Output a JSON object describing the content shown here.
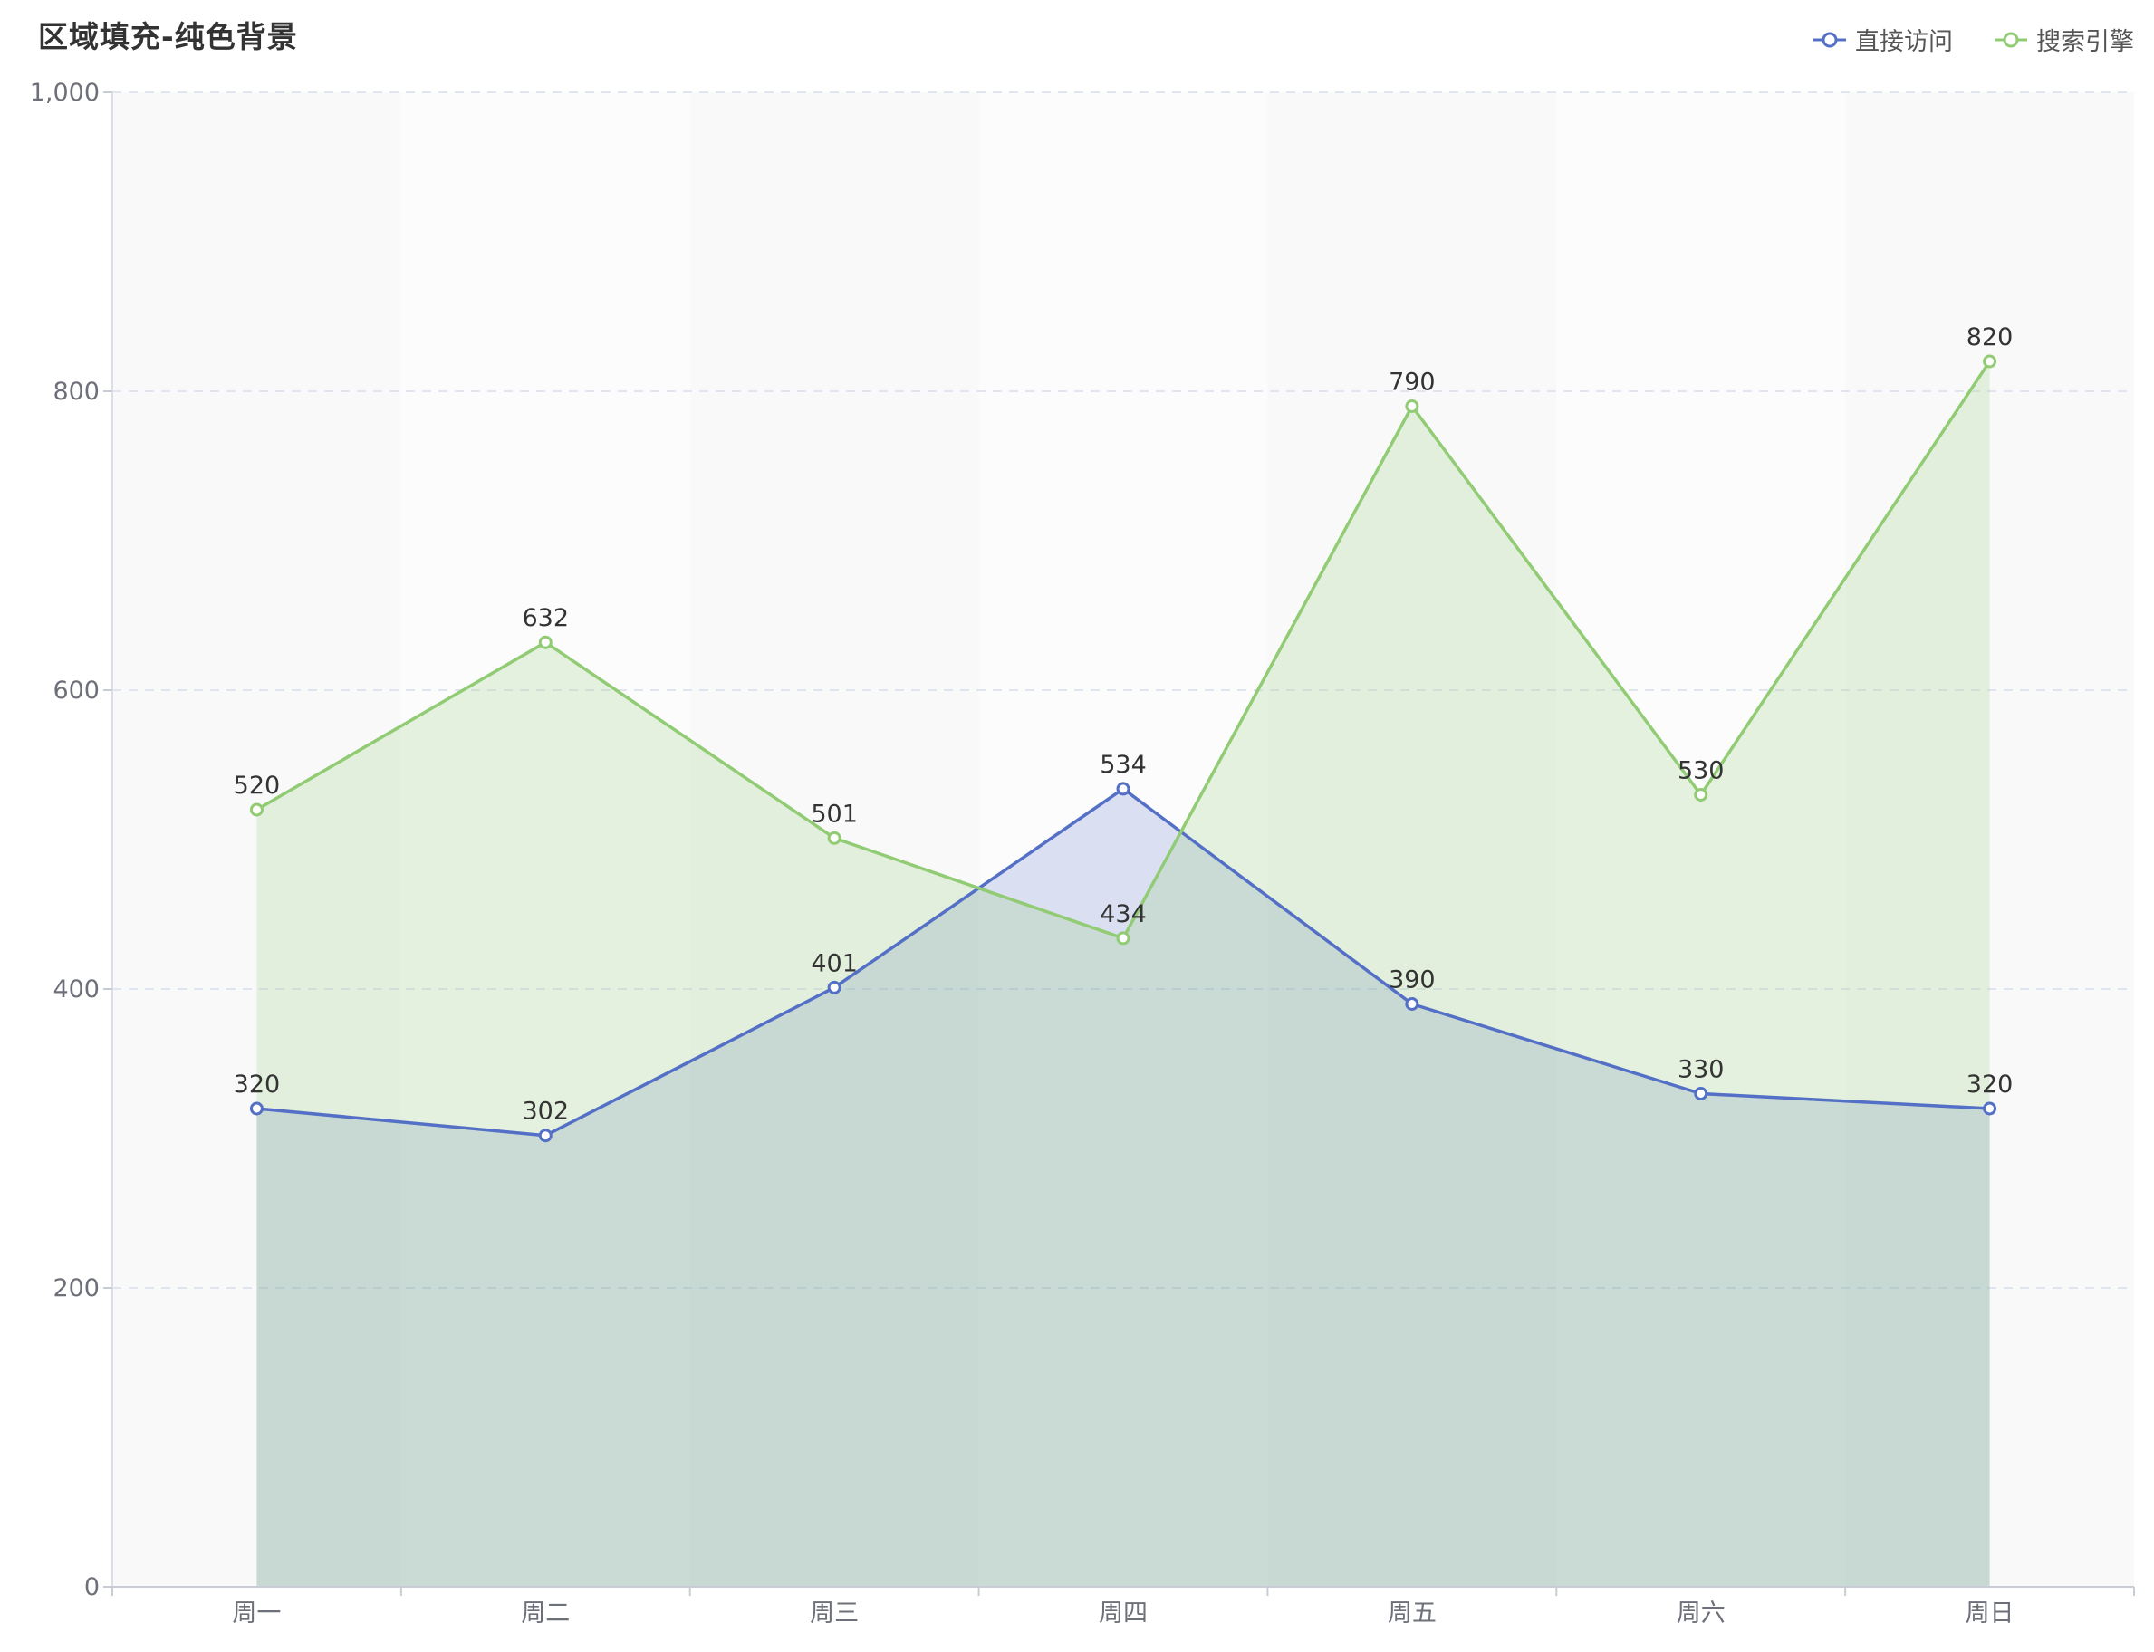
{
  "chart_data": {
    "type": "area",
    "title": "区域填充-纯色背景",
    "categories": [
      "周一",
      "周二",
      "周三",
      "周四",
      "周五",
      "周六",
      "周日"
    ],
    "series": [
      {
        "name": "直接访问",
        "values": [
          320,
          302,
          401,
          534,
          390,
          330,
          320
        ],
        "color": "#5470c6",
        "fill": "#5470c6"
      },
      {
        "name": "搜索引擎",
        "values": [
          520,
          632,
          501,
          434,
          790,
          530,
          820
        ],
        "color": "#91cc75",
        "fill": "#91cc75"
      }
    ],
    "ylim": [
      0,
      1000
    ],
    "yticks": [
      0,
      200,
      400,
      600,
      800,
      1000
    ],
    "ytick_labels": [
      "0",
      "200",
      "400",
      "600",
      "800",
      "1,000"
    ],
    "grid": true,
    "legend_position": "top-right",
    "data_labels": true,
    "xlabel": "",
    "ylabel": ""
  }
}
